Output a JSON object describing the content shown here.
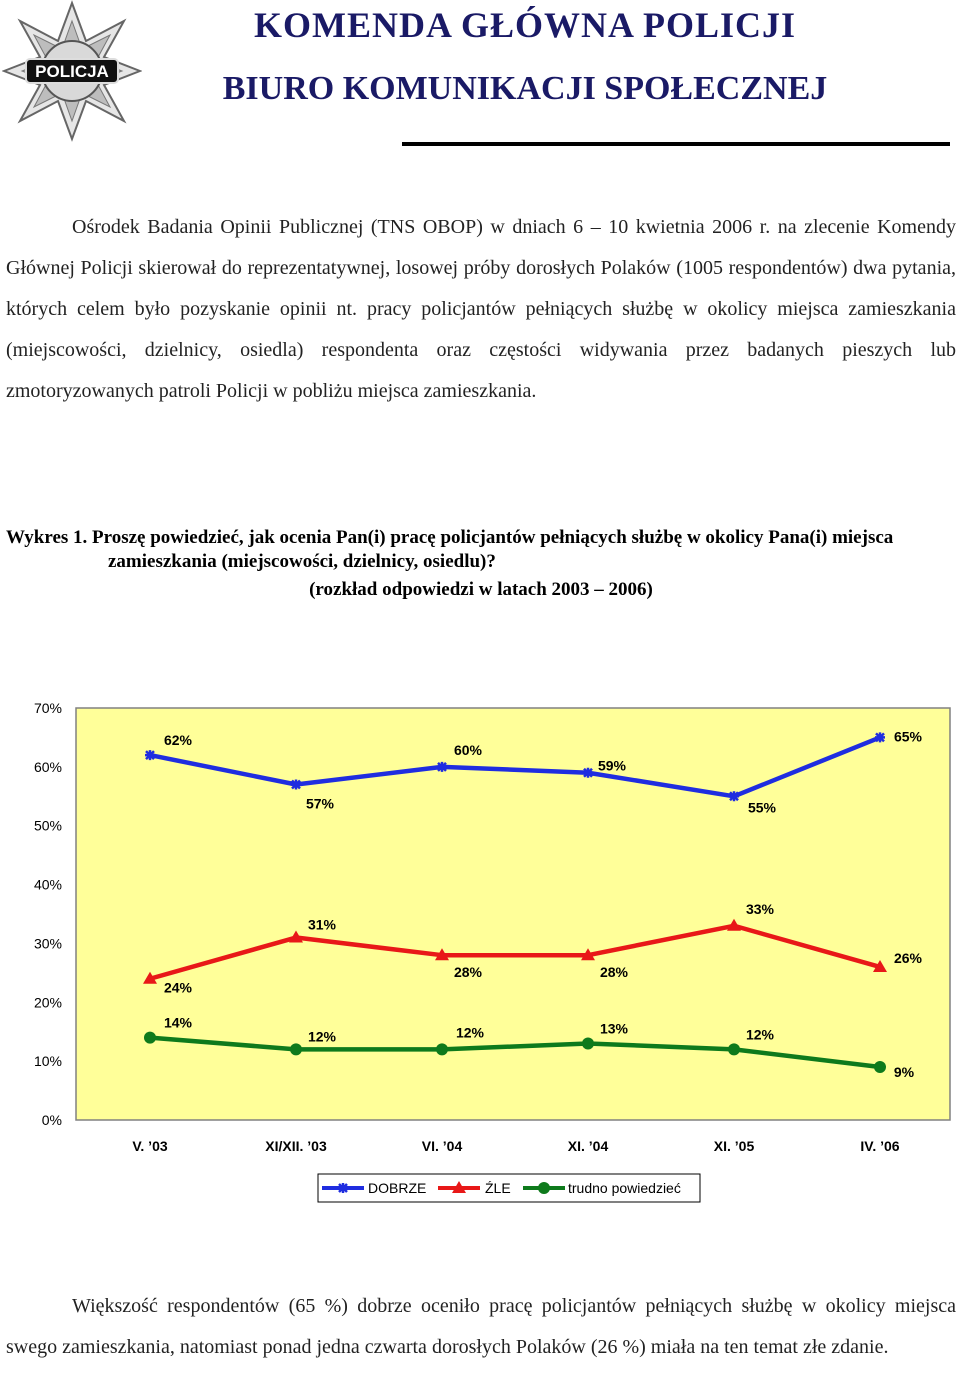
{
  "header": {
    "logo_text": "POLICJA",
    "title_line1": "KOMENDA GŁÓWNA POLICJI",
    "title_line2": "BIURO KOMUNIKACJI SPOŁECZNEJ"
  },
  "intro_paragraph": "Ośrodek Badania Opinii Publicznej (TNS OBOP) w dniach 6 – 10 kwietnia 2006 r. na zlecenie Komendy Głównej Policji skierował do reprezentatywnej, losowej próby dorosłych Polaków (1005 respondentów) dwa pytania, których celem było pozyskanie opinii nt. pracy policjantów pełniących służbę w okolicy miejsca zamieszkania (miejscowości, dzielnicy, osiedla) respondenta oraz częstości widywania przez badanych pieszych lub zmotoryzowanych patroli Policji w pobliżu miejsca zamieszkania.",
  "chart_heading": {
    "question": "Wykres 1. Proszę powiedzieć, jak ocenia Pan(i) pracę policjantów pełniących służbę w okolicy Pana(i) miejsca zamieszkania (miejscowości, dzielnicy, osiedlu)?",
    "subtitle": "(rozkład odpowiedzi w latach 2003 – 2006)"
  },
  "chart_data": {
    "type": "line",
    "categories": [
      "V. ’03",
      "XI/XII. ’03",
      "VI. ’04",
      "XI. ’04",
      "XI. ’05",
      "IV. ’06"
    ],
    "series": [
      {
        "name": "DOBRZE",
        "values": [
          62,
          57,
          60,
          59,
          55,
          65
        ],
        "labels": [
          "62%",
          "57%",
          "60%",
          "59%",
          "55%",
          "65%"
        ],
        "color": "#1f2de0",
        "marker": "star"
      },
      {
        "name": "ŹLE",
        "values": [
          24,
          31,
          28,
          28,
          33,
          26
        ],
        "labels": [
          "24%",
          "31%",
          "28%",
          "28%",
          "33%",
          "26%"
        ],
        "color": "#e81818",
        "marker": "triangle"
      },
      {
        "name": "trudno powiedzieć",
        "values": [
          14,
          12,
          12,
          13,
          12,
          9
        ],
        "labels": [
          "14%",
          "12%",
          "12%",
          "13%",
          "12%",
          "9%"
        ],
        "color": "#0e7a1c",
        "marker": "circle"
      }
    ],
    "yticks": [
      "0%",
      "10%",
      "20%",
      "30%",
      "40%",
      "50%",
      "60%",
      "70%"
    ],
    "ylim": [
      0,
      70
    ],
    "plot_background": "#ffff99",
    "grid": false,
    "legend_position": "bottom"
  },
  "closing_paragraph": "Większość respondentów (65 %) dobrze oceniło pracę policjantów pełniących służbę w okolicy miejsca swego zamieszkania, natomiast ponad jedna czwarta dorosłych Polaków (26 %) miała na ten temat złe zdanie."
}
